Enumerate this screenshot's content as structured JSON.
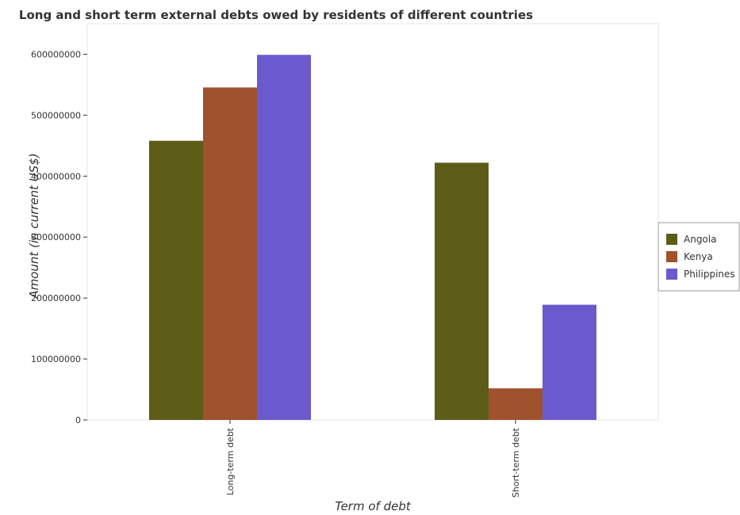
{
  "chart_data": {
    "type": "bar",
    "title": "Long and short term external debts owed by residents of different countries",
    "xlabel": "Term of debt",
    "ylabel": "Amount (in current US$)",
    "categories": [
      "Long-term debt",
      "Short-term debt"
    ],
    "series": [
      {
        "name": "Angola",
        "color": "#5c5c17",
        "values": [
          458000000,
          422000000
        ]
      },
      {
        "name": "Kenya",
        "color": "#a0522d",
        "values": [
          545500000,
          51800000
        ]
      },
      {
        "name": "Philippines",
        "color": "#6a5acd",
        "values": [
          599000000,
          189000000
        ]
      }
    ],
    "ylim": [
      0,
      650000000
    ],
    "yticks": [
      0,
      100000000,
      200000000,
      300000000,
      400000000,
      500000000,
      600000000
    ],
    "ytick_labels": [
      "0",
      "100000000",
      "200000000",
      "300000000",
      "400000000",
      "500000000",
      "600000000"
    ],
    "grid": false,
    "legend_position": "right"
  }
}
